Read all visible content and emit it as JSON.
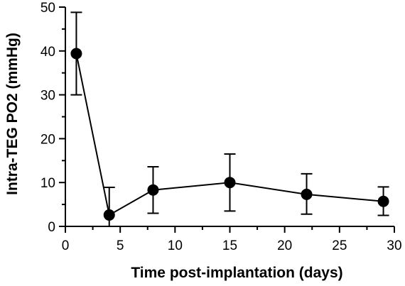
{
  "chart_data": {
    "type": "scatter",
    "title": "",
    "xlabel": "Time post-implantation (days)",
    "ylabel": "Intra-TEG PO2 (mmHg)",
    "xlim": [
      0,
      30
    ],
    "ylim": [
      0,
      50
    ],
    "xticks": [
      0,
      5,
      10,
      15,
      20,
      25,
      30
    ],
    "yticks": [
      0,
      10,
      20,
      30,
      40,
      50
    ],
    "grid": false,
    "legend": "none",
    "colors": {
      "marker": "#000000",
      "line": "#000000",
      "axis": "#000000"
    },
    "series": [
      {
        "connected": true,
        "error_bars": true,
        "points": [
          {
            "x": 1,
            "y": 39.4,
            "err_low": 30.0,
            "err_high": 48.8
          },
          {
            "x": 4,
            "y": 2.6,
            "err_low": 0.0,
            "err_high": 8.9
          },
          {
            "x": 8,
            "y": 8.3,
            "err_low": 3.0,
            "err_high": 13.6
          },
          {
            "x": 15,
            "y": 10.0,
            "err_low": 3.5,
            "err_high": 16.5
          },
          {
            "x": 22,
            "y": 7.3,
            "err_low": 2.8,
            "err_high": 12.0
          },
          {
            "x": 29,
            "y": 5.7,
            "err_low": 2.5,
            "err_high": 9.0
          }
        ]
      }
    ]
  }
}
